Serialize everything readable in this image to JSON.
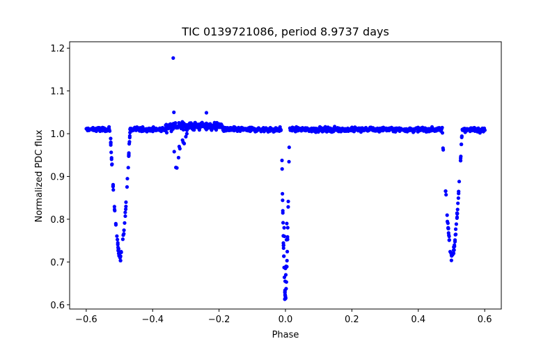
{
  "chart_data": {
    "type": "scatter",
    "title": "TIC 0139721086, period 8.9737 days",
    "xlabel": "Phase",
    "ylabel": "Normalized PDC flux",
    "xlim": [
      -0.65,
      0.65
    ],
    "ylim": [
      0.59,
      1.215
    ],
    "xticks": [
      -0.6,
      -0.4,
      -0.2,
      0.0,
      0.2,
      0.4,
      0.6
    ],
    "xtick_labels": [
      "−0.6",
      "−0.4",
      "−0.2",
      "0.0",
      "0.2",
      "0.4",
      "0.6"
    ],
    "yticks": [
      0.6,
      0.7,
      0.8,
      0.9,
      1.0,
      1.1,
      1.2
    ],
    "ytick_labels": [
      "0.6",
      "0.7",
      "0.8",
      "0.9",
      "1.0",
      "1.1",
      "1.2"
    ],
    "series": [
      {
        "name": "flux",
        "color": "#0000ff",
        "baseline": {
          "x_range": [
            -0.6,
            0.6
          ],
          "samples_per_unit_phase": 900,
          "level": 1.01,
          "scatter": 0.006,
          "bumps": [
            {
              "x0": -0.36,
              "x1": -0.19,
              "delta": 0.008,
              "extra_scatter": 0.006
            }
          ]
        },
        "eclipses": [
          {
            "center": -0.498,
            "depth": 0.3,
            "half_width": 0.03,
            "n_points": 60
          },
          {
            "center": 0.0,
            "depth": 0.395,
            "half_width": 0.012,
            "n_points": 40
          },
          {
            "center": 0.502,
            "depth": 0.3,
            "half_width": 0.03,
            "n_points": 60
          }
        ],
        "points": [
          [
            -0.338,
            1.177
          ],
          [
            -0.336,
            1.05
          ],
          [
            -0.238,
            1.049
          ],
          [
            -0.33,
            0.921
          ],
          [
            -0.327,
            0.92
          ],
          [
            -0.335,
            0.958
          ],
          [
            -0.322,
            0.944
          ],
          [
            -0.32,
            0.97
          ],
          [
            -0.31,
            0.985
          ],
          [
            -0.305,
            0.977
          ],
          [
            -0.3,
            0.993
          ],
          [
            -0.297,
            1.0
          ],
          [
            -0.318,
            0.965
          ],
          [
            -0.308,
            0.98
          ],
          [
            -0.002,
            0.613
          ],
          [
            -0.001,
            0.655
          ],
          [
            0.001,
            0.67
          ],
          [
            0.0,
            0.685
          ],
          [
            0.002,
            0.69
          ],
          [
            -0.003,
            0.76
          ],
          [
            0.003,
            0.752
          ],
          [
            0.004,
            0.79
          ],
          [
            -0.004,
            0.78
          ]
        ]
      }
    ]
  }
}
